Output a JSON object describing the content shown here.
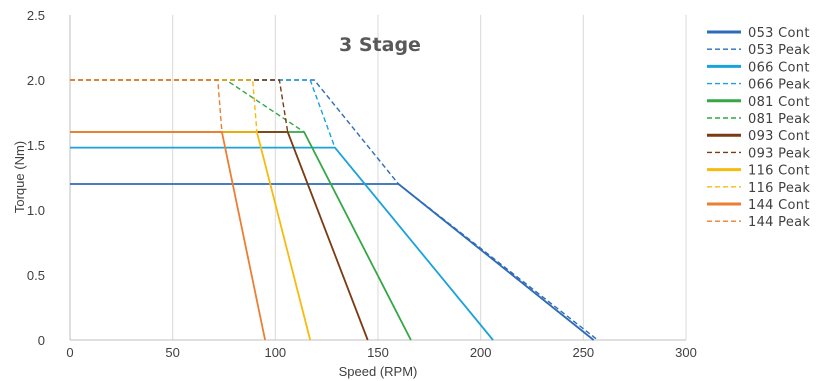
{
  "chart_data": {
    "type": "line",
    "title": "3 Stage",
    "xlabel": "Speed (RPM)",
    "ylabel": "Torque (Nm)",
    "xlim": [
      0,
      300
    ],
    "ylim": [
      0,
      2.5
    ],
    "xticks": [
      0,
      50,
      100,
      150,
      200,
      250,
      300
    ],
    "yticks": [
      0,
      0.5,
      1.0,
      1.5,
      2.0,
      2.5
    ],
    "xtick_labels": [
      "0",
      "50",
      "100",
      "150",
      "200",
      "250",
      "300"
    ],
    "ytick_labels": [
      "0",
      "0.5",
      "1.0",
      "1.5",
      "2.0",
      "2.5"
    ],
    "grid": "vertical",
    "legend_position": "right",
    "series": [
      {
        "name": "053 Cont",
        "color": "#2e6bb8",
        "style": "solid",
        "points": [
          [
            0,
            1.2
          ],
          [
            160,
            1.2
          ],
          [
            255,
            0
          ]
        ]
      },
      {
        "name": "053 Peak",
        "color": "#2e6bb8",
        "style": "dashed",
        "points": [
          [
            0,
            2.0
          ],
          [
            119,
            2.0
          ],
          [
            160,
            1.2
          ],
          [
            257,
            0
          ]
        ]
      },
      {
        "name": "066 Cont",
        "color": "#1ba2dc",
        "style": "solid",
        "points": [
          [
            0,
            1.48
          ],
          [
            129,
            1.48
          ],
          [
            206,
            0
          ]
        ]
      },
      {
        "name": "066 Peak",
        "color": "#1ba2dc",
        "style": "dashed",
        "points": [
          [
            0,
            2.0
          ],
          [
            117,
            2.0
          ],
          [
            129,
            1.48
          ]
        ]
      },
      {
        "name": "081 Cont",
        "color": "#35a745",
        "style": "solid",
        "points": [
          [
            0,
            1.6
          ],
          [
            114,
            1.6
          ],
          [
            166,
            0
          ]
        ]
      },
      {
        "name": "081 Peak",
        "color": "#35a745",
        "style": "dashed",
        "points": [
          [
            0,
            2.0
          ],
          [
            76,
            2.0
          ],
          [
            114,
            1.6
          ]
        ]
      },
      {
        "name": "093 Cont",
        "color": "#7b3a11",
        "style": "solid",
        "points": [
          [
            0,
            1.6
          ],
          [
            106,
            1.6
          ],
          [
            145,
            0
          ]
        ]
      },
      {
        "name": "093 Peak",
        "color": "#7b3a11",
        "style": "dashed",
        "points": [
          [
            0,
            2.0
          ],
          [
            102,
            2.0
          ],
          [
            106,
            1.6
          ]
        ]
      },
      {
        "name": "116 Cont",
        "color": "#f7bb0f",
        "style": "solid",
        "points": [
          [
            0,
            1.6
          ],
          [
            91,
            1.6
          ],
          [
            117,
            0
          ]
        ]
      },
      {
        "name": "116 Peak",
        "color": "#f7bb0f",
        "style": "dashed",
        "points": [
          [
            0,
            2.0
          ],
          [
            89,
            2.0
          ],
          [
            91,
            1.6
          ]
        ]
      },
      {
        "name": "144 Cont",
        "color": "#ec7e32",
        "style": "solid",
        "points": [
          [
            0,
            1.6
          ],
          [
            74,
            1.6
          ],
          [
            95,
            0
          ]
        ]
      },
      {
        "name": "144 Peak",
        "color": "#ec7e32",
        "style": "dashed",
        "points": [
          [
            0,
            2.0
          ],
          [
            72,
            2.0
          ],
          [
            74,
            1.6
          ]
        ]
      }
    ]
  }
}
